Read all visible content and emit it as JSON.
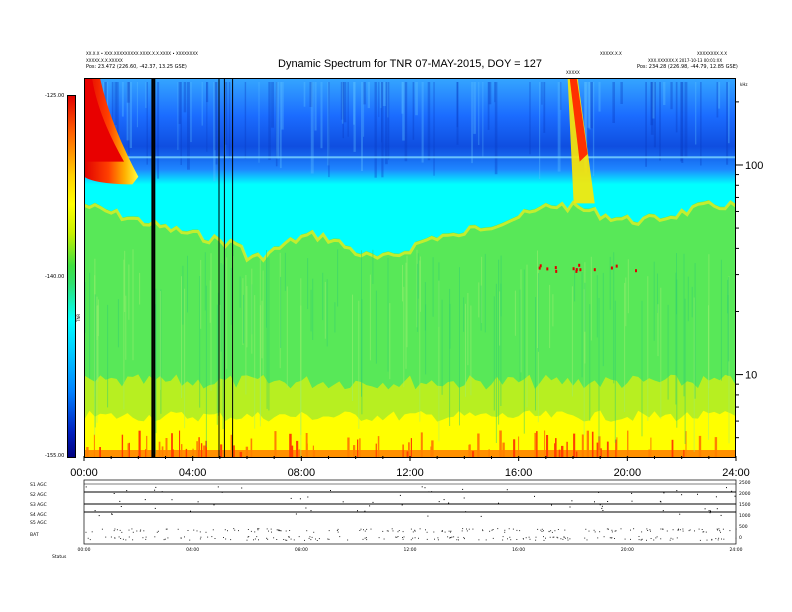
{
  "header": {
    "title": "Dynamic Spectrum for TNR 07-MAY-2015, DOY = 127",
    "left_info": [
      "XX.X.X • XXX.XXXXXXXXX.XXXX.X.X.XXXX • XXXXXXXX",
      "XXXXX.X.X.XXXXX",
      "Pos:   23.472 (226.60, -42.37, 13.25 GSE)"
    ],
    "right_info": [
      "XXXXX.X.X",
      "XXX.XXXXXX.X  2017-10-13 00:01:XX",
      "Pos:   234.28 (226.98, -44.79, 12.85 GSE)"
    ],
    "top_right_id": "XXXXXXXX.X.X",
    "event_marker": "XXXXX"
  },
  "chart_data": {
    "type": "heatmap",
    "title": "Dynamic Spectrum for TNR 07-MAY-2015, DOY = 127",
    "x_ticks": [
      "00:00",
      "04:00",
      "08:00",
      "12:00",
      "16:00",
      "20:00",
      "24:00"
    ],
    "x_range_hours": [
      0,
      24
    ],
    "y_scale": "log",
    "y_range_khz": [
      4,
      260
    ],
    "y_ticks": [
      "100",
      "10"
    ],
    "y_unit": "kHz",
    "colorbar": {
      "range": [
        -155,
        -125
      ],
      "ticks": [
        "-125.00",
        "-140.00",
        "-155.00"
      ],
      "label": "TNR"
    },
    "data_gap_lines_hours": [
      2.48,
      2.55,
      4.95,
      5.15,
      5.45
    ],
    "bursts": [
      {
        "start_hours": 0.0,
        "end_hours": 2.0,
        "note": "radio burst drifting"
      },
      {
        "start_hours": 17.95,
        "end_hours": 18.8,
        "note": "radio burst"
      }
    ],
    "bottom_panels": {
      "labels": [
        "S1 AGC",
        "S2 AGC",
        "S3 AGC",
        "S4 AGC",
        "S5 AGC",
        "BAT"
      ],
      "right_ticks": [
        "2500",
        "2000",
        "1500",
        "1000",
        "500",
        "0"
      ],
      "x_ticks": [
        "00:00",
        "04:00",
        "08:00",
        "12:00",
        "16:00",
        "20:00",
        "24:00"
      ],
      "footer": "Status"
    }
  }
}
